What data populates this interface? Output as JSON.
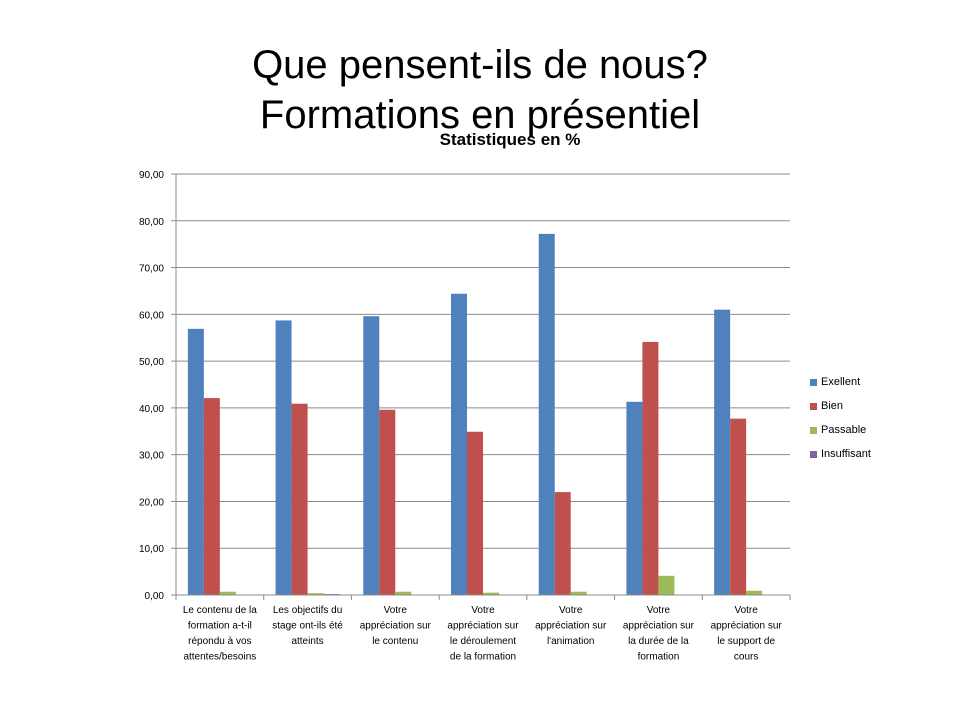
{
  "slide": {
    "title_line1": "Que pensent-ils de nous?",
    "title_line2": "Formations en présentiel"
  },
  "colors": {
    "Exellent": "#4F81BD",
    "Bien": "#C0504D",
    "Passable": "#9BBB59",
    "Insuffisant": "#8064A2",
    "grid": "#8c8c8c",
    "axis": "#8c8c8c"
  },
  "chart_data": {
    "type": "bar",
    "title": "Statistiques en %",
    "xlabel": "",
    "ylabel": "",
    "ylim": [
      0,
      90
    ],
    "yticks": [
      "0,00",
      "10,00",
      "20,00",
      "30,00",
      "40,00",
      "50,00",
      "60,00",
      "70,00",
      "80,00",
      "90,00"
    ],
    "grid": true,
    "legend_position": "right",
    "categories": [
      [
        "Le contenu de la",
        "formation a-t-il",
        "répondu à vos",
        "attentes/besoins"
      ],
      [
        "Les objectifs du",
        "stage ont-ils été",
        "atteints"
      ],
      [
        "Votre",
        "appréciation sur",
        "le contenu"
      ],
      [
        "Votre",
        "appréciation sur",
        "le déroulement",
        "de la formation"
      ],
      [
        "Votre",
        "appréciation sur",
        "l'animation"
      ],
      [
        "Votre",
        "appréciation sur",
        "la durée de la",
        "formation"
      ],
      [
        "Votre",
        "appréciation sur",
        "le support de",
        "cours"
      ]
    ],
    "series": [
      {
        "name": "Exellent",
        "values": [
          56.9,
          58.7,
          59.6,
          64.4,
          77.2,
          41.3,
          61.0
        ]
      },
      {
        "name": "Bien",
        "values": [
          42.1,
          40.9,
          39.6,
          34.9,
          22.0,
          54.1,
          37.7
        ]
      },
      {
        "name": "Passable",
        "values": [
          0.7,
          0.4,
          0.7,
          0.5,
          0.7,
          4.1,
          0.9
        ]
      },
      {
        "name": "Insuffisant",
        "values": [
          0.0,
          0.2,
          0.0,
          0.0,
          0.0,
          0.0,
          0.0
        ]
      }
    ]
  }
}
